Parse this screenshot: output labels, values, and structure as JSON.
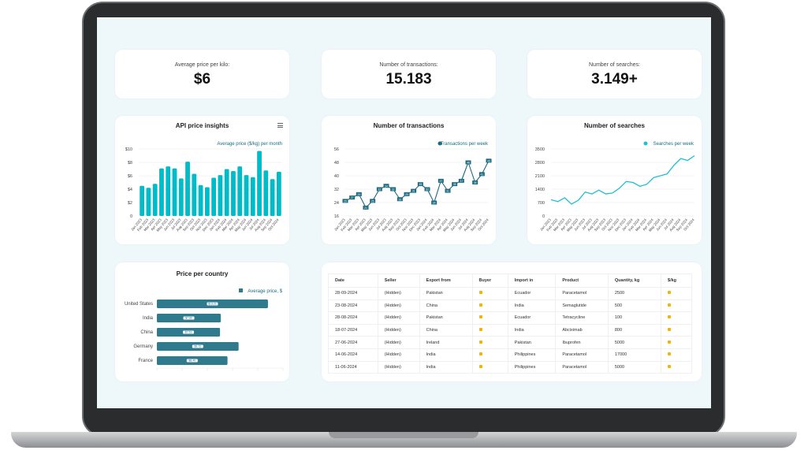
{
  "kpis": [
    {
      "label": "Average price per kilo:",
      "value": "$6"
    },
    {
      "label": "Number of transactions:",
      "value": "15.183"
    },
    {
      "label": "Number of searches:",
      "value": "3.149+"
    }
  ],
  "months": [
    "Jan 2023",
    "Feb 2023",
    "Mar 2023",
    "Apr 2023",
    "May 2023",
    "Jun 2023",
    "Jul 2023",
    "Aug 2023",
    "Sep 2023",
    "Oct 2023",
    "Nov 2023",
    "Dec 2023",
    "Jan 2024",
    "Feb 2024",
    "Mar 2024",
    "Apr 2024",
    "May 2024",
    "Jun 2024",
    "Jul 2024",
    "Aug 2024",
    "Sep 2024",
    "Oct 2024"
  ],
  "chart_data": [
    {
      "type": "bar",
      "title": "API price insights",
      "legend": "Average price ($/kg) per month",
      "color": "#00bcc9",
      "yticks": [
        "0",
        "$2",
        "$4",
        "$6",
        "$8",
        "$10"
      ],
      "ylim": [
        0,
        10
      ],
      "values": [
        4.5,
        4.2,
        4.8,
        7.1,
        7.4,
        7.1,
        5.6,
        8.1,
        6.3,
        4.6,
        4.3,
        5.7,
        6.1,
        7.0,
        6.7,
        7.4,
        6.1,
        5.8,
        9.7,
        6.8,
        5.5,
        6.6
      ]
    },
    {
      "type": "line",
      "title": "Number of transactions",
      "legend": "Transactions per week",
      "color": "#1c6a80",
      "yticks": [
        "16",
        "24",
        "32",
        "40",
        "48",
        "56"
      ],
      "ylim": [
        16,
        56
      ],
      "values": [
        25,
        27,
        29,
        21,
        25,
        32,
        34,
        32,
        26,
        29,
        31,
        35,
        32,
        24,
        37,
        31,
        35,
        37,
        48,
        36,
        41,
        49
      ]
    },
    {
      "type": "line",
      "title": "Number of searches",
      "legend": "Searches per week",
      "color": "#1fbfd4",
      "yticks": [
        "0",
        "700",
        "1400",
        "2100",
        "2800",
        "3500"
      ],
      "ylim": [
        0,
        3500
      ],
      "values": [
        850,
        750,
        950,
        620,
        820,
        1250,
        1150,
        1350,
        1150,
        1200,
        1450,
        1800,
        1750,
        1550,
        1650,
        2000,
        2100,
        2200,
        2650,
        3000,
        2900,
        3150
      ]
    },
    {
      "type": "bar",
      "orientation": "horizontal",
      "title": "Price per country",
      "legend": "Average price, $",
      "color": "#2f7a8c",
      "xlim": [
        0,
        15
      ],
      "categories": [
        "United States",
        "India",
        "China",
        "Germany",
        "France"
      ],
      "values": [
        13.21,
        7.6,
        7.51,
        9.72,
        8.4
      ],
      "labels": [
        "$13.21",
        "$7.60",
        "$7.51",
        "$9.72",
        "$8.40"
      ]
    }
  ],
  "table": {
    "headers": [
      "Date",
      "Seller",
      "Export from",
      "Buyer",
      "Import in",
      "Product",
      "Quantity, kg",
      "$/kg"
    ],
    "rows": [
      [
        "28-09-2024",
        "(Hidden)",
        "Pakistan",
        "lock",
        "Ecuador",
        "Paracetamol",
        "2500",
        "lock"
      ],
      [
        "23-08-2024",
        "(Hidden)",
        "China",
        "lock",
        "India",
        "Semaglutide",
        "500",
        "lock"
      ],
      [
        "28-08-2024",
        "(Hidden)",
        "Pakistan",
        "lock",
        "Ecuador",
        "Tetracycline",
        "100",
        "lock"
      ],
      [
        "18-07-2024",
        "(Hidden)",
        "China",
        "lock",
        "India",
        "Abciximab",
        "800",
        "lock"
      ],
      [
        "27-06-2024",
        "(Hidden)",
        "Ireland",
        "lock",
        "Pakistan",
        "Ibuprofen",
        "5000",
        "lock"
      ],
      [
        "14-06-2024",
        "(Hidden)",
        "India",
        "lock",
        "Philippines",
        "Paracetamol",
        "17000",
        "lock"
      ],
      [
        "11-06-2024",
        "(Hidden)",
        "India",
        "lock",
        "Philippines",
        "Paracetamol",
        "5000",
        "lock"
      ]
    ]
  }
}
